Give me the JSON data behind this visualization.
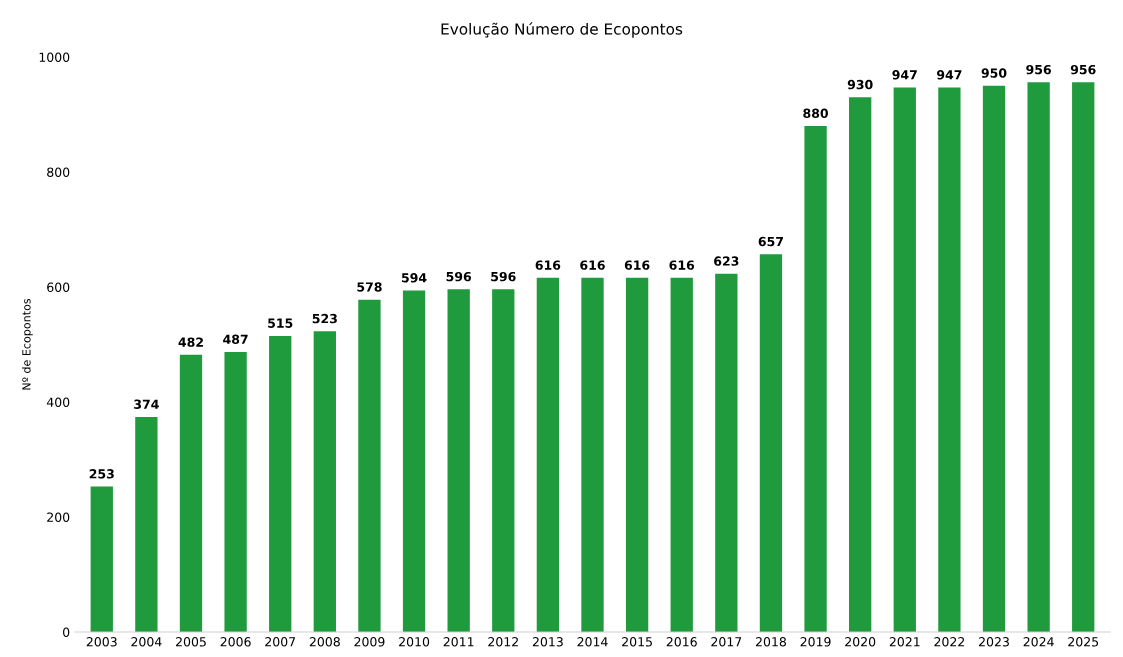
{
  "chart_data": {
    "type": "bar",
    "title": "Evolução Número de Ecopontos",
    "ylabel": "Nº de Ecopontos",
    "categories": [
      "2003",
      "2004",
      "2005",
      "2006",
      "2007",
      "2008",
      "2009",
      "2010",
      "2011",
      "2012",
      "2013",
      "2014",
      "2015",
      "2016",
      "2017",
      "2018",
      "2019",
      "2020",
      "2021",
      "2022",
      "2023",
      "2024",
      "2025"
    ],
    "values": [
      253,
      374,
      482,
      487,
      515,
      523,
      578,
      594,
      596,
      596,
      616,
      616,
      616,
      616,
      623,
      657,
      880,
      930,
      947,
      947,
      950,
      956,
      956
    ],
    "color": "#1f9a3c",
    "ylim": [
      0,
      1000
    ],
    "yticks": [
      0,
      200,
      400,
      600,
      800,
      1000
    ],
    "grid": false,
    "data_labels": true
  }
}
